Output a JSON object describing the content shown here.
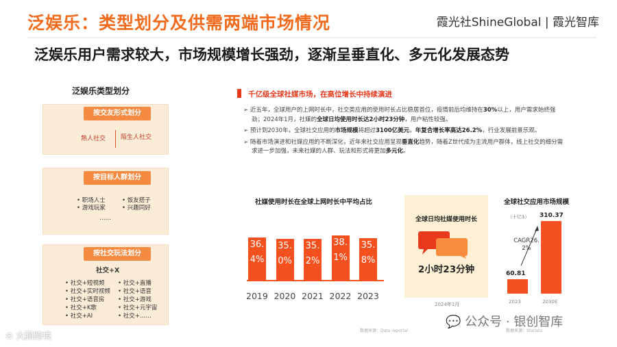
{
  "header": {
    "title": "泛娱乐：类型划分及供需两端市场情况",
    "brand": "霞光社ShineGlobal | 霞光智库"
  },
  "subtitle": "泛娱乐用户需求较大，市场规模增长强劲，逐渐呈垂直化、多元化发展态势",
  "left_panel": {
    "title": "泛娱乐类型划分",
    "box1": {
      "header": "按交友形式划分",
      "left": "熟人社交",
      "right": "陌生人社交"
    },
    "box2": {
      "header": "按目标人群划分",
      "items": [
        "职场人士",
        "饭友搭子",
        "游戏玩家",
        "兴趣同好"
      ],
      "more": "……"
    },
    "box3": {
      "header": "按社交玩法划分",
      "center": "社交+X",
      "left_items": [
        "社交+短视频",
        "社交+实时视频",
        "社交+语音房",
        "社交+K歌",
        "社交+AI"
      ],
      "right_items": [
        "社交+直播",
        "社交+语音",
        "社交+游戏",
        "社交+元宇宙",
        "社交+……"
      ]
    }
  },
  "right_panel": {
    "section_title": "千亿级全球社媒市场，在高位增长中持续演进",
    "bullets": [
      [
        "近五年，全球用户的上网时长中，社交类应用的使用时长占比稳居首位，疫情前后均维持在",
        "30%",
        "以上，用户需求始终强劲；2024年1月，社媒的",
        "全球日均使用时长达2小时23分钟",
        "，用户粘性较强。"
      ],
      [
        "预计到2030年，全球社交应用的",
        "市场规模",
        "将超过",
        "3100亿美元",
        "，",
        "年复合增长率高达26.2%",
        "，行业发展前景乐观。"
      ],
      [
        "随着市场演进和社媒应用的不断深化，近年来社交应用呈现",
        "垂直化",
        "趋势，随着Z世代成为主流用户群体，线上社交的细分需求进一步加强，未来社媒的人群、玩法和形式将更加",
        "多元化",
        "。"
      ]
    ]
  },
  "chart_data": [
    {
      "type": "bar",
      "title": "社媒使用时长在全球上网时长中平均占比",
      "categories": [
        "2019",
        "2020",
        "2021",
        "2022",
        "2023"
      ],
      "values": [
        36.4,
        35.0,
        35.2,
        38.1,
        35.8
      ],
      "labels": [
        "36.4%",
        "35.0%",
        "35.2%",
        "38.1%",
        "35.8%"
      ],
      "bar_color": "#f4511e"
    },
    {
      "type": "bar",
      "title": "全球社交应用市场规模",
      "unit": "（十亿$）",
      "categories": [
        "2023",
        "2030E"
      ],
      "values": [
        60.81,
        310.37
      ],
      "annotation": "CAGR26.2%",
      "bar_color": "#f4511e"
    }
  ],
  "stat_card": {
    "title": "全球日均社媒使用时长",
    "value": "2小时23分钟",
    "date": "2024年1月"
  },
  "sources": [
    "数据来源：Data reportal",
    "数据来源：Statista"
  ],
  "footer": {
    "logo": "大鹏跨境",
    "watermark": "公众号 · 银创智库"
  },
  "colors": {
    "accent": "#f26b1d",
    "bar": "#f4511e",
    "box": "#fbecd7",
    "pill": "#f58a42"
  }
}
